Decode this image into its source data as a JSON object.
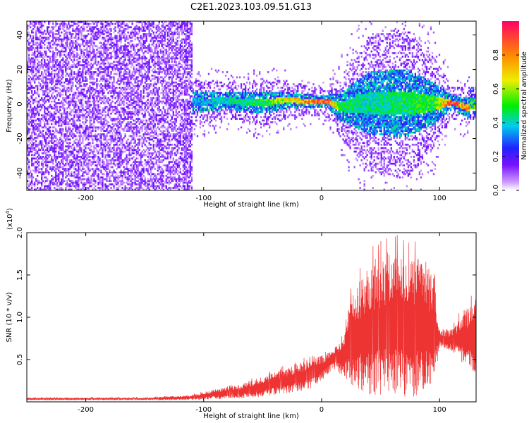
{
  "title": "C2E1.2023.103.09.51.G13",
  "chart_data": [
    {
      "type": "heatmap",
      "xlabel": "Height of straight line (km)",
      "ylabel": "Frequency (Hz)",
      "xlim": [
        -250,
        131
      ],
      "ylim": [
        -50,
        48
      ],
      "x_ticks": [
        -200,
        -100,
        0,
        100
      ],
      "y_ticks": [
        -40,
        -20,
        0,
        20,
        40
      ],
      "colorbar": {
        "label": "Normalized spectral amplitude",
        "range": [
          0.0,
          1.0
        ],
        "ticks": [
          0.0,
          0.2,
          0.4,
          0.6,
          0.8
        ],
        "tick_labels": [
          "0.0",
          "0.2",
          "0.4",
          "0.6",
          "0.8"
        ]
      },
      "noise_region_km": [
        -250,
        -110
      ],
      "signal_ridge": [
        {
          "x": -110,
          "freq": 0.5,
          "spread": 6,
          "amp": 0.35
        },
        {
          "x": -80,
          "freq": 1.5,
          "spread": 5,
          "amp": 0.45
        },
        {
          "x": -50,
          "freq": 0.0,
          "spread": 6,
          "amp": 0.5
        },
        {
          "x": -30,
          "freq": 2.0,
          "spread": 5,
          "amp": 0.7
        },
        {
          "x": -10,
          "freq": 1.0,
          "spread": 4,
          "amp": 0.85
        },
        {
          "x": 5,
          "freq": 1.0,
          "spread": 4,
          "amp": 0.95
        },
        {
          "x": 15,
          "freq": -2.0,
          "spread": 8,
          "amp": 0.5
        },
        {
          "x": 40,
          "freq": 0.0,
          "spread": 18,
          "amp": 0.45
        },
        {
          "x": 70,
          "freq": 0.0,
          "spread": 20,
          "amp": 0.5
        },
        {
          "x": 95,
          "freq": 0.0,
          "spread": 12,
          "amp": 0.55
        },
        {
          "x": 110,
          "freq": 0.5,
          "spread": 4,
          "amp": 0.95
        },
        {
          "x": 125,
          "freq": -3.0,
          "spread": 6,
          "amp": 0.8
        }
      ]
    },
    {
      "type": "line",
      "xlabel": "Height of straight line (km)",
      "ylabel": "SNR (10 * v/v)",
      "y_multiplier": "(x10",
      "y_multiplier_exp": "4",
      "y_multiplier_close": ")",
      "xlim": [
        -250,
        131
      ],
      "ylim": [
        0,
        2.0
      ],
      "x_ticks": [
        -200,
        -100,
        0,
        100
      ],
      "y_ticks": [
        0.5,
        1.0,
        1.5,
        2.0
      ],
      "y_tick_labels": [
        "0.5",
        "1.0",
        "1.5",
        "2.0"
      ],
      "series": [
        {
          "name": "SNR",
          "color": "#ee3333",
          "envelope_x": [
            -250,
            -150,
            -110,
            -90,
            -70,
            -50,
            -30,
            -10,
            0,
            10,
            18,
            25,
            40,
            55,
            70,
            85,
            95,
            100,
            110,
            120,
            131
          ],
          "envelope_low": [
            0.02,
            0.02,
            0.02,
            0.03,
            0.04,
            0.06,
            0.1,
            0.15,
            0.25,
            0.4,
            0.3,
            0.15,
            0.08,
            0.05,
            0.05,
            0.05,
            0.1,
            0.65,
            0.6,
            0.45,
            0.3
          ],
          "envelope_high": [
            0.05,
            0.05,
            0.08,
            0.15,
            0.2,
            0.3,
            0.4,
            0.5,
            0.55,
            0.6,
            0.8,
            1.3,
            1.6,
            1.7,
            1.75,
            1.7,
            1.5,
            0.85,
            0.85,
            1.05,
            1.25
          ]
        }
      ]
    }
  ]
}
